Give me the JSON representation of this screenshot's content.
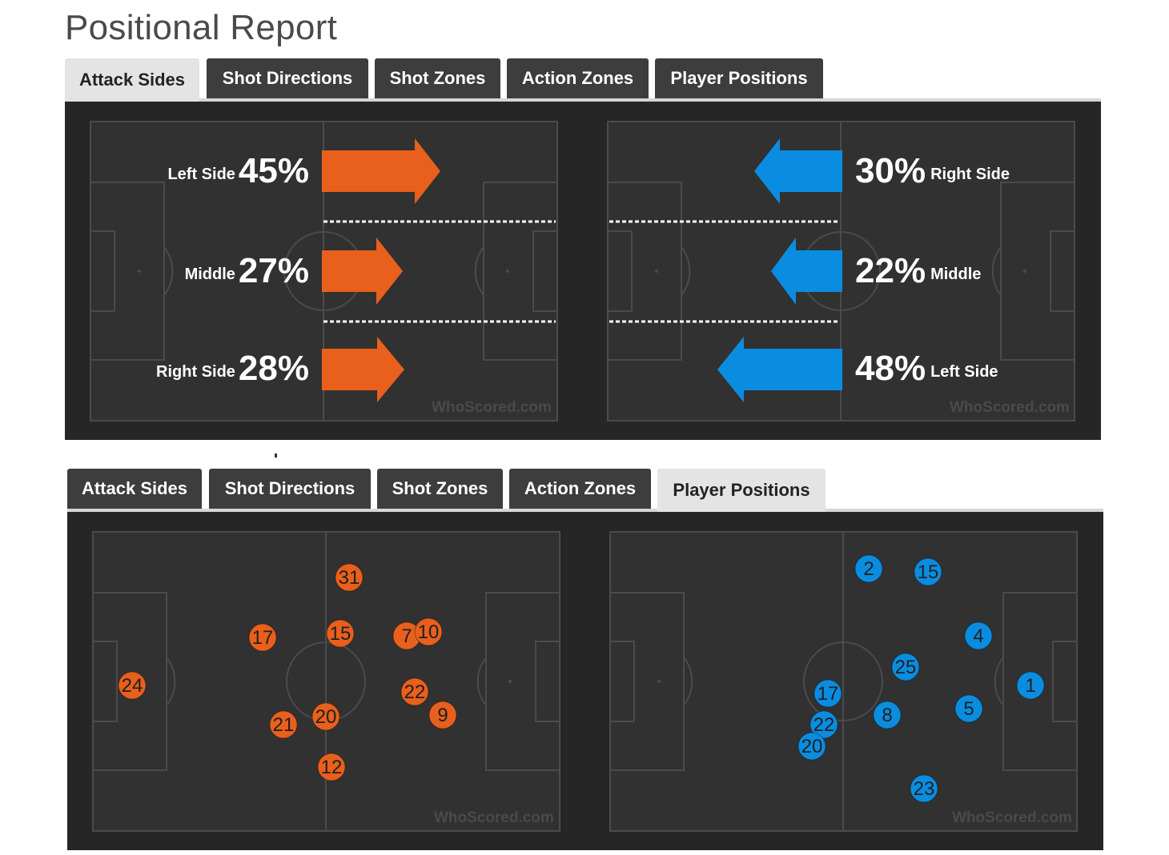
{
  "page_title": "Positional Report",
  "tabs": [
    "Attack Sides",
    "Shot Directions",
    "Shot Zones",
    "Action Zones",
    "Player Positions"
  ],
  "top_active_tab": "Attack Sides",
  "bottom_active_tab": "Player Positions",
  "watermark": "WhoScored.com",
  "colors": {
    "home": "#e8601c",
    "away": "#0a8de0",
    "panel": "#262626",
    "pitch": "#313131",
    "lines": "#4b4b4b"
  },
  "attack_sides": {
    "home": [
      {
        "label": "Left Side",
        "pct": "45%"
      },
      {
        "label": "Middle",
        "pct": "27%"
      },
      {
        "label": "Right Side",
        "pct": "28%"
      }
    ],
    "away": [
      {
        "label": "Right Side",
        "pct": "30%"
      },
      {
        "label": "Middle",
        "pct": "22%"
      },
      {
        "label": "Left Side",
        "pct": "48%"
      }
    ]
  },
  "player_positions": {
    "home": [
      "31",
      "17",
      "15",
      "7",
      "10",
      "24",
      "22",
      "9",
      "21",
      "20",
      "12"
    ],
    "away": [
      "2",
      "15",
      "4",
      "25",
      "1",
      "17",
      "8",
      "5",
      "22",
      "20",
      "23"
    ]
  }
}
